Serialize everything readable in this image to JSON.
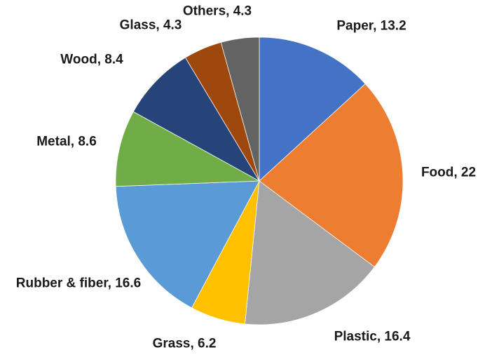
{
  "chart_data": {
    "type": "pie",
    "title": "",
    "legend": "none",
    "start_angle_deg": 0,
    "direction": "clockwise",
    "categories": [
      "Paper",
      "Food",
      "Plastic",
      "Grass",
      "Rubber & fiber",
      "Metal",
      "Wood",
      "Glass",
      "Others"
    ],
    "values": [
      13.2,
      22,
      16.4,
      6.2,
      16.6,
      8.6,
      8.4,
      4.3,
      4.3
    ],
    "colors": [
      "#4472C4",
      "#ED7D31",
      "#A5A5A5",
      "#FFC000",
      "#5B9BD5",
      "#70AD47",
      "#264478",
      "#9E480E",
      "#636363"
    ],
    "labels": {
      "paper": "Paper, 13.2",
      "food": "Food, 22",
      "plastic": "Plastic, 16.4",
      "grass": "Grass, 6.2",
      "rubber": "Rubber & fiber, 16.6",
      "metal": "Metal, 8.6",
      "wood": "Wood, 8.4",
      "glass": "Glass, 4.3",
      "others": "Others, 4.3"
    }
  }
}
